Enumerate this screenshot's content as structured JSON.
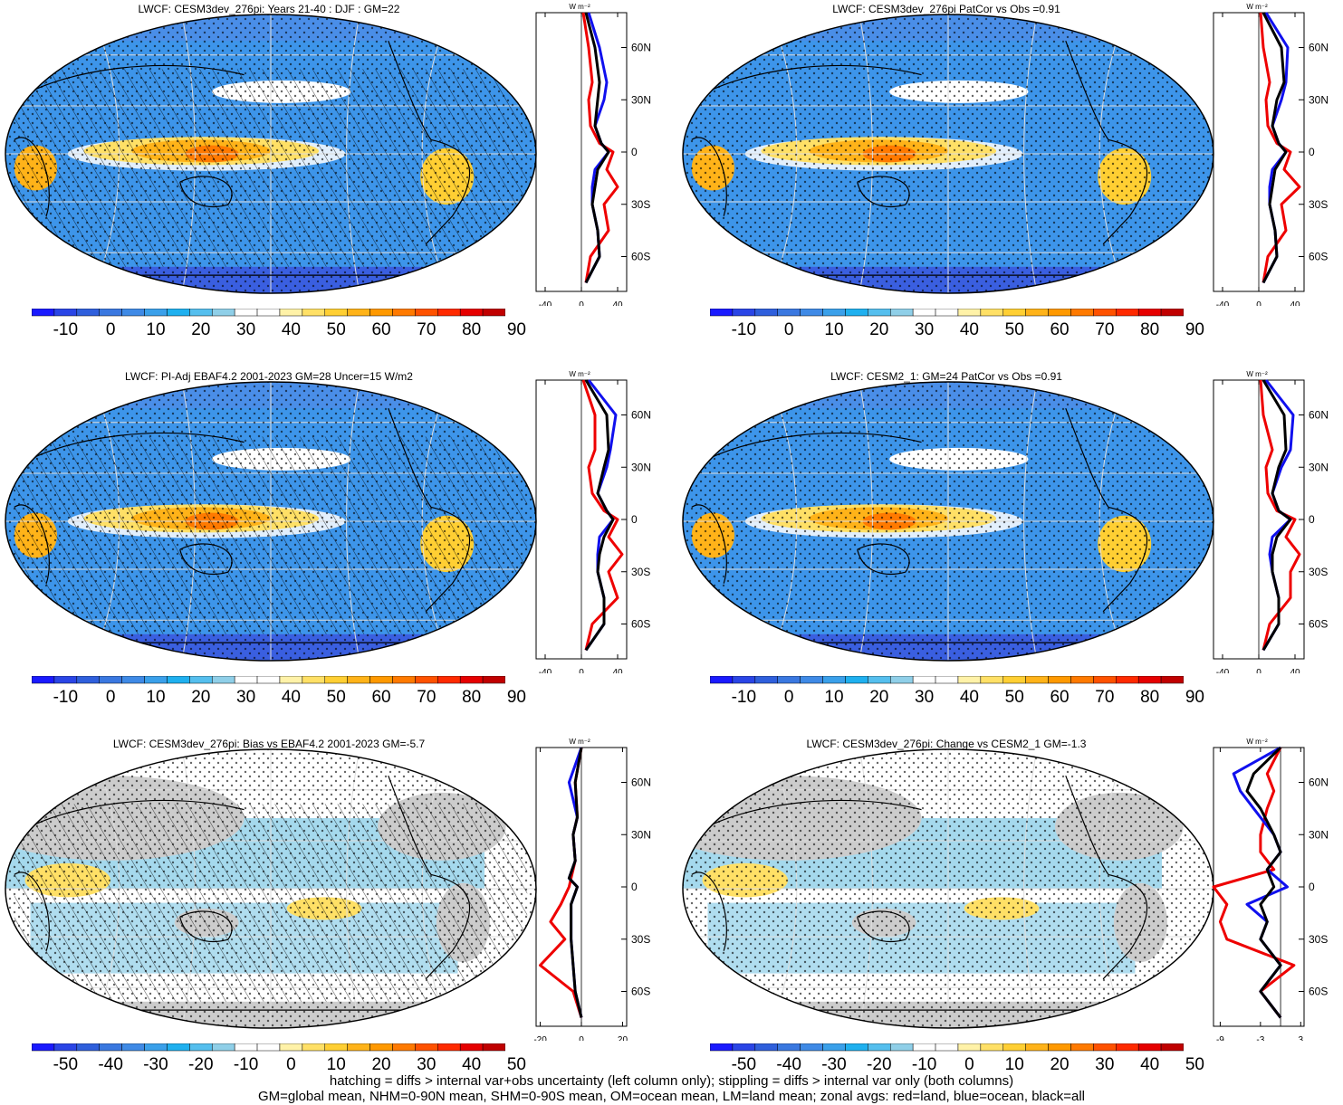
{
  "panels": [
    {
      "title": "LWCF: CESM3dev_276pi: Years 21-40 : DJF : GM=22",
      "cbar_labels": [
        "-10",
        "0",
        "10",
        "20",
        "30",
        "40",
        "50",
        "60",
        "70",
        "80",
        "90"
      ],
      "cbar_type": "abs",
      "profile": {
        "unit": "W m⁻²",
        "xticks": [
          "-40",
          "0",
          "40"
        ],
        "xrange": [
          -50,
          50
        ],
        "zero": 0
      },
      "hatch": true,
      "stipple": true
    },
    {
      "title": "LWCF: CESM3dev_276pi PatCor vs Obs =0.91",
      "cbar_labels": [
        "-10",
        "0",
        "10",
        "20",
        "30",
        "40",
        "50",
        "60",
        "70",
        "80",
        "90"
      ],
      "cbar_type": "abs",
      "profile": {
        "unit": "W m⁻²",
        "xticks": [
          "-40",
          "0",
          "40"
        ],
        "xrange": [
          -50,
          50
        ],
        "zero": 0
      },
      "hatch": false,
      "stipple": true
    },
    {
      "title": "LWCF: PI-Adj EBAF4.2 2001-2023 GM=28 Uncer=15 W/m2",
      "cbar_labels": [
        "-10",
        "0",
        "10",
        "20",
        "30",
        "40",
        "50",
        "60",
        "70",
        "80",
        "90"
      ],
      "cbar_type": "abs",
      "profile": {
        "unit": "W m⁻²",
        "xticks": [
          "-40",
          "0",
          "40"
        ],
        "xrange": [
          -50,
          50
        ],
        "zero": 0
      },
      "hatch": true,
      "stipple": true
    },
    {
      "title": "LWCF: CESM2_1: GM=24 PatCor vs Obs =0.91",
      "cbar_labels": [
        "-10",
        "0",
        "10",
        "20",
        "30",
        "40",
        "50",
        "60",
        "70",
        "80",
        "90"
      ],
      "cbar_type": "abs",
      "profile": {
        "unit": "W m⁻²",
        "xticks": [
          "-40",
          "0",
          "40"
        ],
        "xrange": [
          -50,
          50
        ],
        "zero": 0
      },
      "hatch": false,
      "stipple": true
    },
    {
      "title": "LWCF: CESM3dev_276pi: Bias vs EBAF4.2 2001-2023 GM=-5.7",
      "cbar_labels": [
        "-50",
        "-40",
        "-30",
        "-20",
        "-10",
        "0",
        "10",
        "20",
        "30",
        "40",
        "50"
      ],
      "cbar_type": "diff",
      "profile": {
        "unit": "W m⁻²",
        "xticks": [
          "-20",
          "0",
          "20"
        ],
        "xrange": [
          -22,
          22
        ],
        "zero": 0
      },
      "hatch": true,
      "stipple": true
    },
    {
      "title": "LWCF: CESM3dev_276pi: Change vs CESM2_1 GM=-1.3",
      "cbar_labels": [
        "-50",
        "-40",
        "-30",
        "-20",
        "-10",
        "0",
        "10",
        "20",
        "30",
        "40",
        "50"
      ],
      "cbar_type": "diff",
      "profile": {
        "unit": "W m⁻²",
        "xticks": [
          "-9",
          "-3",
          "3"
        ],
        "xrange": [
          -10,
          3.5
        ],
        "zero": 0
      },
      "hatch": false,
      "stipple": true
    }
  ],
  "lat_labels": [
    "60N",
    "30N",
    "0",
    "30S",
    "60S"
  ],
  "footer": [
    "hatching = diffs > internal var+obs uncertainty (left column only); stippling = diffs > internal var only (both columns)",
    "GM=global mean, NHM=0-90N mean, SHM=0-90S mean, OM=ocean mean, LM=land mean; zonal avgs: red=land, blue=ocean, black=all"
  ],
  "colors": {
    "abs": [
      "#1a1aff",
      "#2a45e6",
      "#2f5fdc",
      "#3a78e0",
      "#3f8ae6",
      "#3aa0ea",
      "#1fb0ef",
      "#55bfee",
      "#8fcfe8",
      "#ffffff",
      "#ffffff",
      "#fff2a8",
      "#ffe066",
      "#ffcf33",
      "#ffb319",
      "#ff9900",
      "#ff7a00",
      "#ff5200",
      "#ff2a00",
      "#e60000",
      "#c00000"
    ],
    "diff": [
      "#1a1aff",
      "#2a45e6",
      "#2f5fdc",
      "#3a78e0",
      "#3f8ae6",
      "#3aa0ea",
      "#1fb0ef",
      "#55bfee",
      "#8fcfe8",
      "#ffffff",
      "#ffffff",
      "#fff2a8",
      "#ffe066",
      "#ffcf33",
      "#ffb319",
      "#ff9900",
      "#ff7a00",
      "#ff5200",
      "#ff2a00",
      "#e60000",
      "#c00000"
    ],
    "land_line": "#ee0000",
    "ocean_line": "#1010ee",
    "all_line": "#000000"
  },
  "chart_data": [
    {
      "type": "heatmap",
      "title": "LWCF: CESM3dev_276pi: Years 21-40 : DJF : GM=22",
      "zonal_profile": {
        "lat": [
          80,
          60,
          40,
          30,
          15,
          5,
          0,
          -10,
          -20,
          -30,
          -45,
          -60,
          -75
        ],
        "all": [
          5,
          15,
          20,
          18,
          15,
          22,
          30,
          18,
          15,
          12,
          18,
          20,
          5
        ],
        "ocean": [
          8,
          20,
          28,
          25,
          15,
          22,
          30,
          15,
          12,
          12,
          18,
          20,
          5
        ],
        "land": [
          2,
          8,
          12,
          8,
          10,
          20,
          35,
          28,
          40,
          25,
          30,
          10,
          5
        ]
      }
    },
    {
      "type": "heatmap",
      "title": "LWCF: CESM3dev_276pi PatCor vs Obs =0.91",
      "zonal_profile": {
        "lat": [
          80,
          60,
          40,
          30,
          15,
          5,
          0,
          -10,
          -20,
          -30,
          -45,
          -60,
          -75
        ],
        "all": [
          5,
          25,
          28,
          20,
          15,
          22,
          30,
          18,
          15,
          12,
          18,
          20,
          5
        ],
        "ocean": [
          8,
          32,
          30,
          25,
          15,
          22,
          30,
          15,
          12,
          12,
          18,
          20,
          5
        ],
        "land": [
          2,
          5,
          12,
          8,
          10,
          20,
          35,
          28,
          45,
          25,
          30,
          10,
          5
        ]
      }
    },
    {
      "type": "heatmap",
      "title": "LWCF: PI-Adj EBAF4.2 2001-2023 GM=28 Uncer=15 W/m2",
      "zonal_profile": {
        "lat": [
          80,
          60,
          40,
          30,
          15,
          5,
          0,
          -10,
          -20,
          -30,
          -45,
          -60,
          -75
        ],
        "all": [
          5,
          28,
          30,
          25,
          18,
          28,
          35,
          25,
          20,
          18,
          25,
          25,
          5
        ],
        "ocean": [
          8,
          38,
          32,
          28,
          18,
          28,
          35,
          20,
          18,
          18,
          25,
          25,
          5
        ],
        "land": [
          2,
          15,
          15,
          8,
          12,
          25,
          40,
          30,
          45,
          30,
          40,
          12,
          5
        ]
      }
    },
    {
      "type": "heatmap",
      "title": "LWCF: CESM2_1: GM=24 PatCor vs Obs =0.91",
      "zonal_profile": {
        "lat": [
          80,
          60,
          40,
          30,
          15,
          5,
          0,
          -10,
          -20,
          -30,
          -45,
          -60,
          -75
        ],
        "all": [
          5,
          28,
          30,
          22,
          15,
          22,
          35,
          20,
          15,
          15,
          22,
          22,
          5
        ],
        "ocean": [
          8,
          38,
          35,
          25,
          15,
          22,
          35,
          15,
          12,
          15,
          22,
          22,
          5
        ],
        "land": [
          2,
          5,
          15,
          8,
          10,
          20,
          40,
          30,
          45,
          35,
          35,
          12,
          5
        ]
      }
    },
    {
      "type": "heatmap",
      "title": "LWCF: CESM3dev_276pi: Bias vs EBAF4.2 2001-2023 GM=-5.7",
      "zonal_profile": {
        "lat": [
          80,
          60,
          40,
          30,
          15,
          5,
          0,
          -10,
          -20,
          -30,
          -45,
          -60,
          -75
        ],
        "all": [
          0,
          -3,
          -2,
          -4,
          -3,
          -6,
          -2,
          -5,
          -5,
          -5,
          -4,
          -3,
          0
        ],
        "ocean": [
          0,
          -6,
          -2,
          -4,
          -3,
          -6,
          -2,
          -5,
          -5,
          -5,
          -4,
          -3,
          0
        ],
        "land": [
          0,
          -3,
          -2,
          -4,
          -3,
          -5,
          -6,
          -10,
          -15,
          -8,
          -20,
          -4,
          0
        ]
      }
    },
    {
      "type": "heatmap",
      "title": "LWCF: CESM3dev_276pi: Change vs CESM2_1 GM=-1.3",
      "zonal_profile": {
        "lat": [
          80,
          65,
          55,
          45,
          30,
          20,
          10,
          0,
          -10,
          -20,
          -30,
          -45,
          -60,
          -75
        ],
        "all": [
          0,
          -4,
          -5,
          -3,
          -1,
          0,
          -2,
          -1,
          -3,
          -2,
          -3,
          0,
          -3,
          0
        ],
        "ocean": [
          0,
          -7,
          -6,
          -4,
          -1,
          0,
          -2,
          1,
          -5,
          -2,
          -3,
          0,
          -3,
          0
        ],
        "land": [
          0,
          -2,
          -1,
          -2,
          -3,
          -3,
          -1,
          -10,
          -8,
          -9,
          -8,
          2,
          -3,
          0
        ]
      }
    }
  ]
}
